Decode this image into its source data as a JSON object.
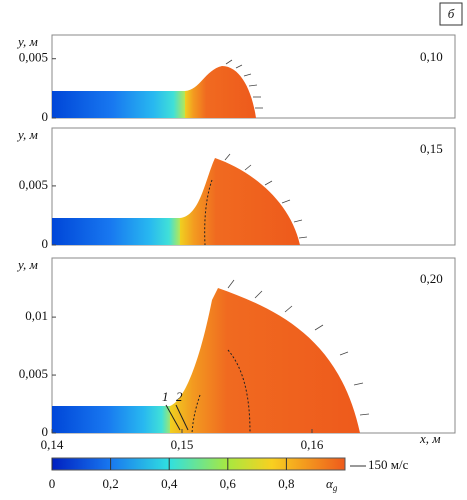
{
  "figure": {
    "panel_label": "б",
    "x_axis_label": "x, м",
    "xlim": [
      0.14,
      0.171
    ],
    "xticks": [
      {
        "value": 0.14,
        "label": "0,14"
      },
      {
        "value": 0.15,
        "label": "0,15"
      },
      {
        "value": 0.16,
        "label": "0,16"
      }
    ],
    "panels": [
      {
        "time_label": "0,10",
        "y_axis_label": "y, м",
        "ylim": [
          0,
          0.007
        ],
        "yticks": [
          0,
          {
            "value": 0.005,
            "label": "0,005"
          }
        ]
      },
      {
        "time_label": "0,15",
        "y_axis_label": "y, м",
        "ylim": [
          0,
          0.0099
        ],
        "yticks": [
          0,
          {
            "value": 0.005,
            "label": "0,005"
          }
        ]
      },
      {
        "time_label": "0,20",
        "y_axis_label": "y, м",
        "ylim": [
          0,
          0.0151
        ],
        "yticks": [
          0,
          {
            "value": 0.005,
            "label": "0,005"
          },
          {
            "value": 0.01,
            "label": "0,01"
          }
        ],
        "curve_labels": [
          "1",
          "2"
        ]
      }
    ],
    "colorbar": {
      "lim": [
        0,
        1
      ],
      "ticks": [
        0,
        {
          "value": 0.2,
          "label": "0,2"
        },
        {
          "value": 0.4,
          "label": "0,4"
        },
        {
          "value": 0.6,
          "label": "0,6"
        },
        {
          "value": 0.8,
          "label": "0,8"
        }
      ],
      "label": "α",
      "label_sub": "g"
    },
    "vector_scale": "150 м/с"
  }
}
